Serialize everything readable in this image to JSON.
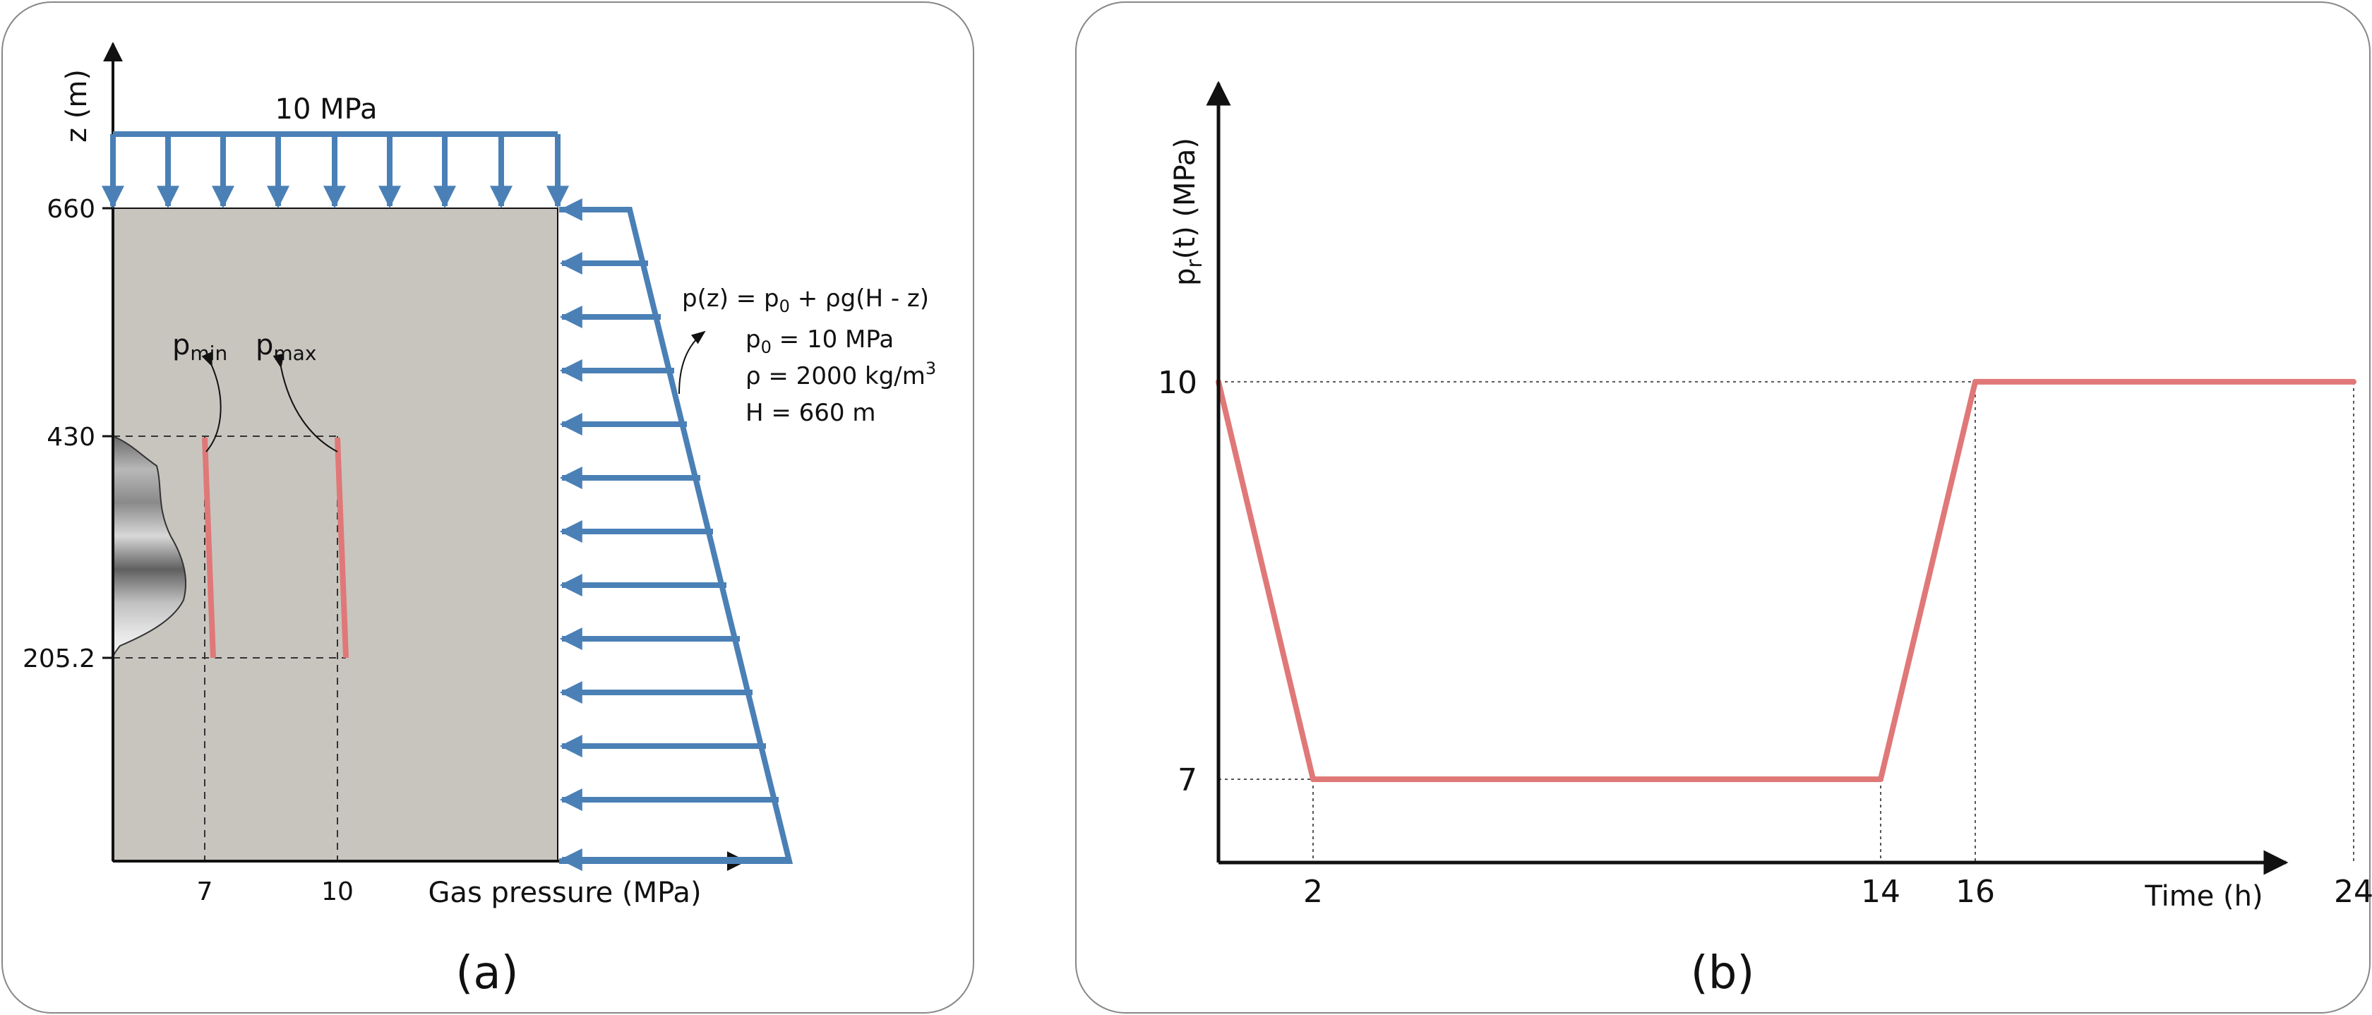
{
  "panel_a": {
    "label": "(a)",
    "y_axis_label": "z (m)",
    "x_axis_label": "Gas pressure (MPa)",
    "top_load_label": "10 MPa",
    "y_ticks": [
      "660",
      "430",
      "205.2"
    ],
    "x_ticks": [
      "7",
      "10"
    ],
    "p_min_label": {
      "base": "p",
      "sub": "min"
    },
    "p_max_label": {
      "base": "p",
      "sub": "max"
    },
    "equation": {
      "line1": "p(z) = p",
      "line1_sub": "0",
      "line1_rest": " + ρg(H - z)",
      "p0_base": "p",
      "p0_sub": "0",
      "p0_rest": " = 10 MPa",
      "rho_text": "ρ = 2000 kg/m",
      "rho_sup": "3",
      "h_text": "H = 660 m"
    },
    "colors": {
      "block": "#c8c5bf",
      "load": "#4a80b6",
      "pressure": "#e07878"
    }
  },
  "panel_b": {
    "label": "(b)",
    "y_axis_label": {
      "base": "p",
      "sub": "r",
      "rest": "(t) (MPa)"
    },
    "x_axis_label": "Time (h)",
    "y_ticks": [
      "10",
      "7"
    ],
    "x_ticks": [
      "2",
      "14",
      "16",
      "24"
    ]
  },
  "chart_data": {
    "type": "line",
    "x": [
      0,
      2,
      14,
      16,
      24
    ],
    "y": [
      10,
      7,
      7,
      10,
      10
    ],
    "xlabel": "Time (h)",
    "ylabel": "pr(t) (MPa)",
    "color": "#e07878"
  }
}
